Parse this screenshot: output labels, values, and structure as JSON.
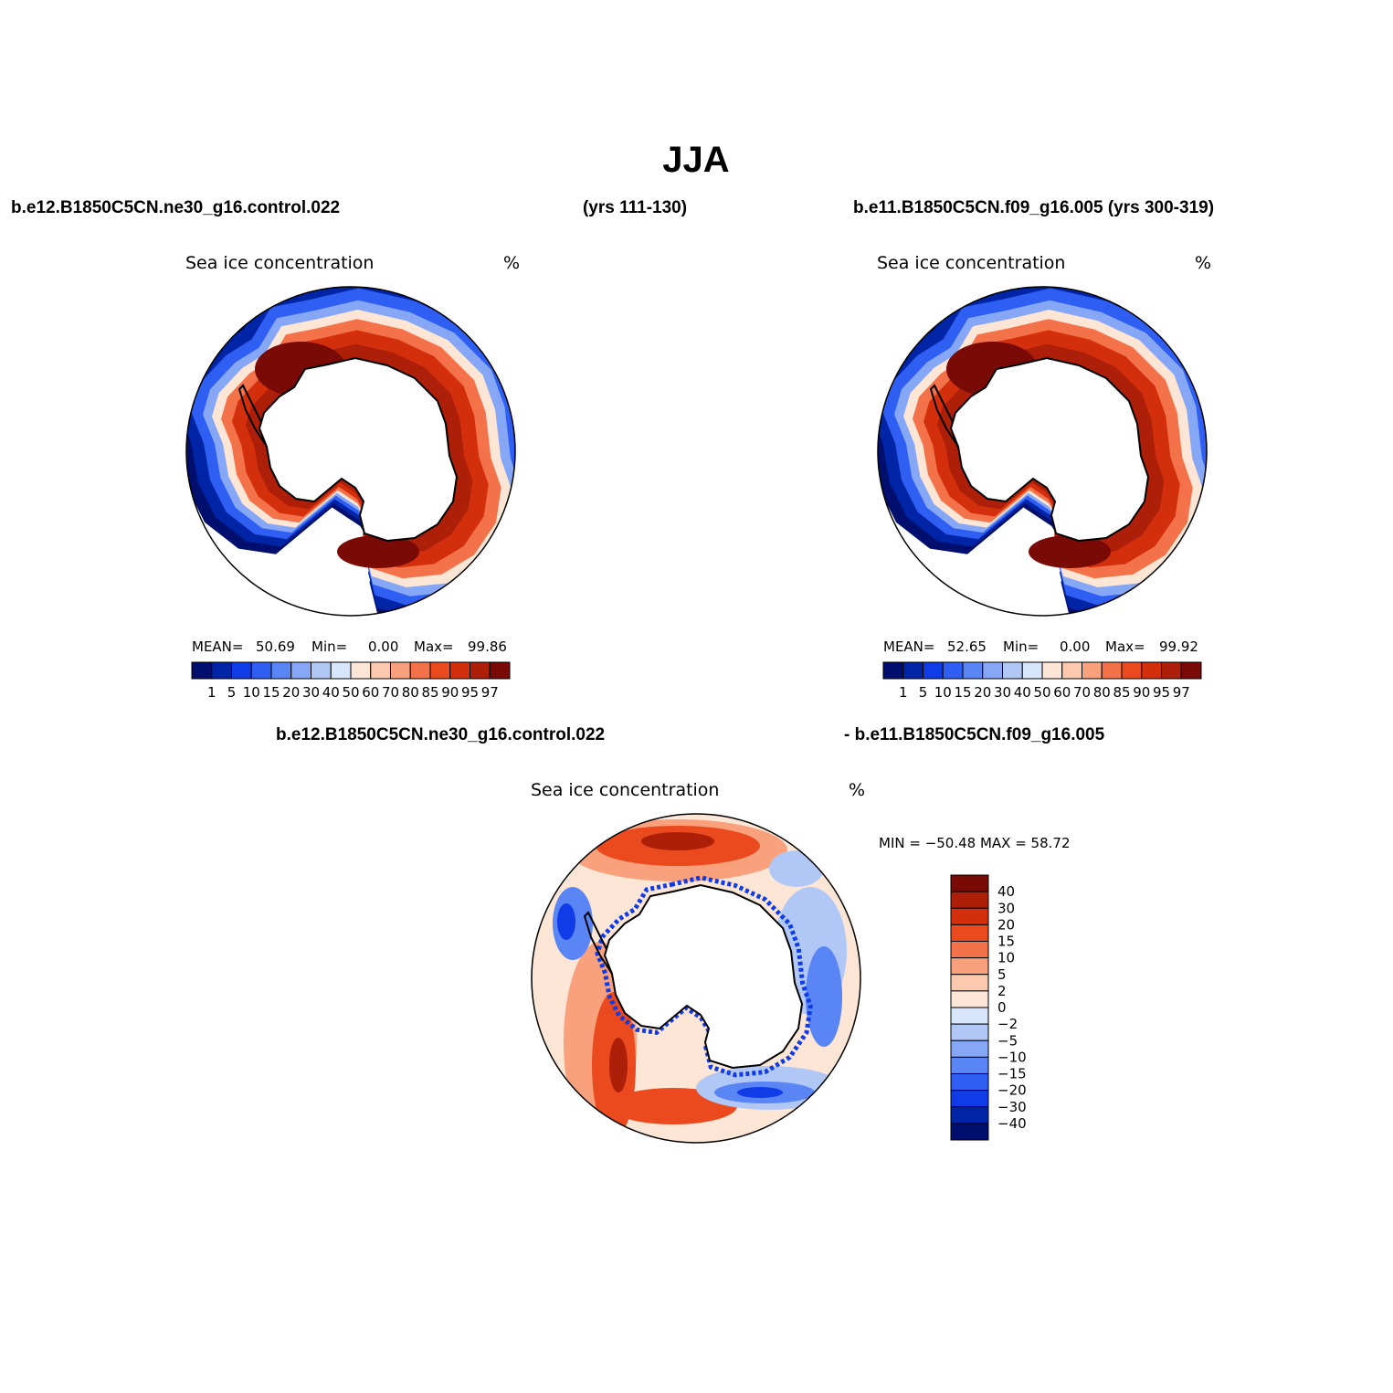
{
  "figure": {
    "title": "JJA",
    "top_left_header": "b.e12.B1850C5CN.ne30_g16.control.022",
    "top_center_header": "(yrs 111-130)",
    "top_right_header": "b.e11.B1850C5CN.f09_g16.005 (yrs 300-319)",
    "bottom_header_left": "b.e12.B1850C5CN.ne30_g16.control.022",
    "bottom_header_right": "- b.e11.B1850C5CN.f09_g16.005"
  },
  "panels": [
    {
      "variable": "Sea ice concentration",
      "units": "%",
      "stats": {
        "mean_label": "MEAN=",
        "mean": "50.69",
        "min_label": "Min=",
        "min": "0.00",
        "max_label": "Max=",
        "max": "99.86"
      }
    },
    {
      "variable": "Sea ice concentration",
      "units": "%",
      "stats": {
        "mean_label": "MEAN=",
        "mean": "52.65",
        "min_label": "Min=",
        "min": "0.00",
        "max_label": "Max=",
        "max": "99.92"
      }
    }
  ],
  "diff_panel": {
    "variable": "Sea ice concentration",
    "units": "%",
    "minmax": "MIN = −50.48 MAX =   58.72"
  },
  "abs_colorbar": {
    "labels": [
      "1",
      "5",
      "10",
      "15",
      "20",
      "30",
      "40",
      "50",
      "60",
      "70",
      "80",
      "85",
      "90",
      "95",
      "97"
    ],
    "colors": [
      "#000e6e",
      "#0024a6",
      "#0f3ce6",
      "#2e5ef2",
      "#5a85f5",
      "#86a7f5",
      "#b1c8f7",
      "#d7e6fb",
      "#fde6d6",
      "#fcc8ae",
      "#f9a07c",
      "#f4724a",
      "#ea4a1e",
      "#d42f0c",
      "#ad1f08",
      "#7a0a06"
    ]
  },
  "diff_colorbar": {
    "labels": [
      "40",
      "30",
      "20",
      "15",
      "10",
      "5",
      "2",
      "0",
      "−2",
      "−5",
      "−10",
      "−15",
      "−20",
      "−30",
      "−40"
    ],
    "colors": [
      "#7a0a06",
      "#ad1f08",
      "#d42f0c",
      "#ea4a1e",
      "#f4724a",
      "#f9a07c",
      "#fcc8ae",
      "#fde6d6",
      "#d7e6fb",
      "#b1c8f7",
      "#86a7f5",
      "#5a85f5",
      "#2e5ef2",
      "#0f3ce6",
      "#0024a6",
      "#000e6e"
    ]
  },
  "map_colors": {
    "ocean": "#ffffff",
    "land": "#ffffff",
    "outline": "#000000",
    "ice_edge": "#000e6e",
    "ice_blue_1": "#0024a6",
    "ice_blue_2": "#2e5ef2",
    "ice_blue_3": "#86a7f5",
    "ice_pale": "#fde6d6",
    "ice_orange": "#f4724a",
    "ice_red": "#d42f0c",
    "ice_dark": "#ad1f08",
    "ice_darkest": "#7a0a06",
    "diff_bg": "#fde6d6",
    "diff_pos_1": "#f9a07c",
    "diff_pos_2": "#ea4a1e",
    "diff_pos_3": "#ad1f08",
    "diff_neg_1": "#b1c8f7",
    "diff_neg_2": "#5a85f5",
    "diff_neg_3": "#0f3ce6"
  }
}
